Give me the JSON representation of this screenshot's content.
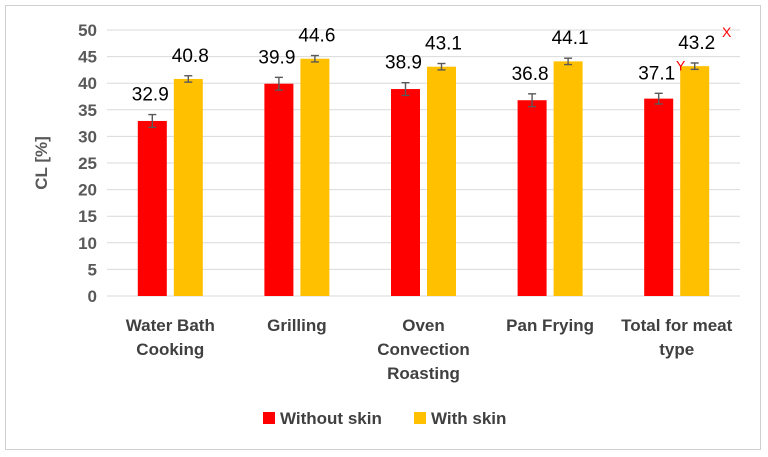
{
  "chart_data": {
    "type": "bar",
    "ylabel": "CL [%]",
    "ylim": [
      0,
      50
    ],
    "yticks": [
      0,
      5,
      10,
      15,
      20,
      25,
      30,
      35,
      40,
      45,
      50
    ],
    "grid": true,
    "legend_position": "bottom",
    "categories": [
      [
        "Water Bath",
        "Cooking"
      ],
      [
        "Grilling"
      ],
      [
        "Oven",
        "Convection",
        "Roasting"
      ],
      [
        "Pan Frying"
      ],
      [
        "Total for meat",
        "type"
      ]
    ],
    "series": [
      {
        "name": "Without skin",
        "color": "#ff0000",
        "values": [
          32.9,
          39.9,
          38.9,
          36.8,
          37.1
        ],
        "labels": [
          "32.9",
          "39.9",
          "38.9",
          "36.8",
          "37.1"
        ],
        "errors": [
          1.2,
          1.2,
          1.2,
          1.2,
          1.0
        ],
        "annotations": [
          "",
          "",
          "",
          "",
          "Y"
        ]
      },
      {
        "name": "With skin",
        "color": "#ffc000",
        "values": [
          40.8,
          44.6,
          43.1,
          44.1,
          43.2
        ],
        "labels": [
          "40.8",
          "44.6",
          "43.1",
          "44.1",
          "43.2"
        ],
        "errors": [
          0.6,
          0.6,
          0.6,
          0.6,
          0.6
        ],
        "annotations": [
          "",
          "",
          "",
          "",
          "X"
        ]
      }
    ]
  }
}
